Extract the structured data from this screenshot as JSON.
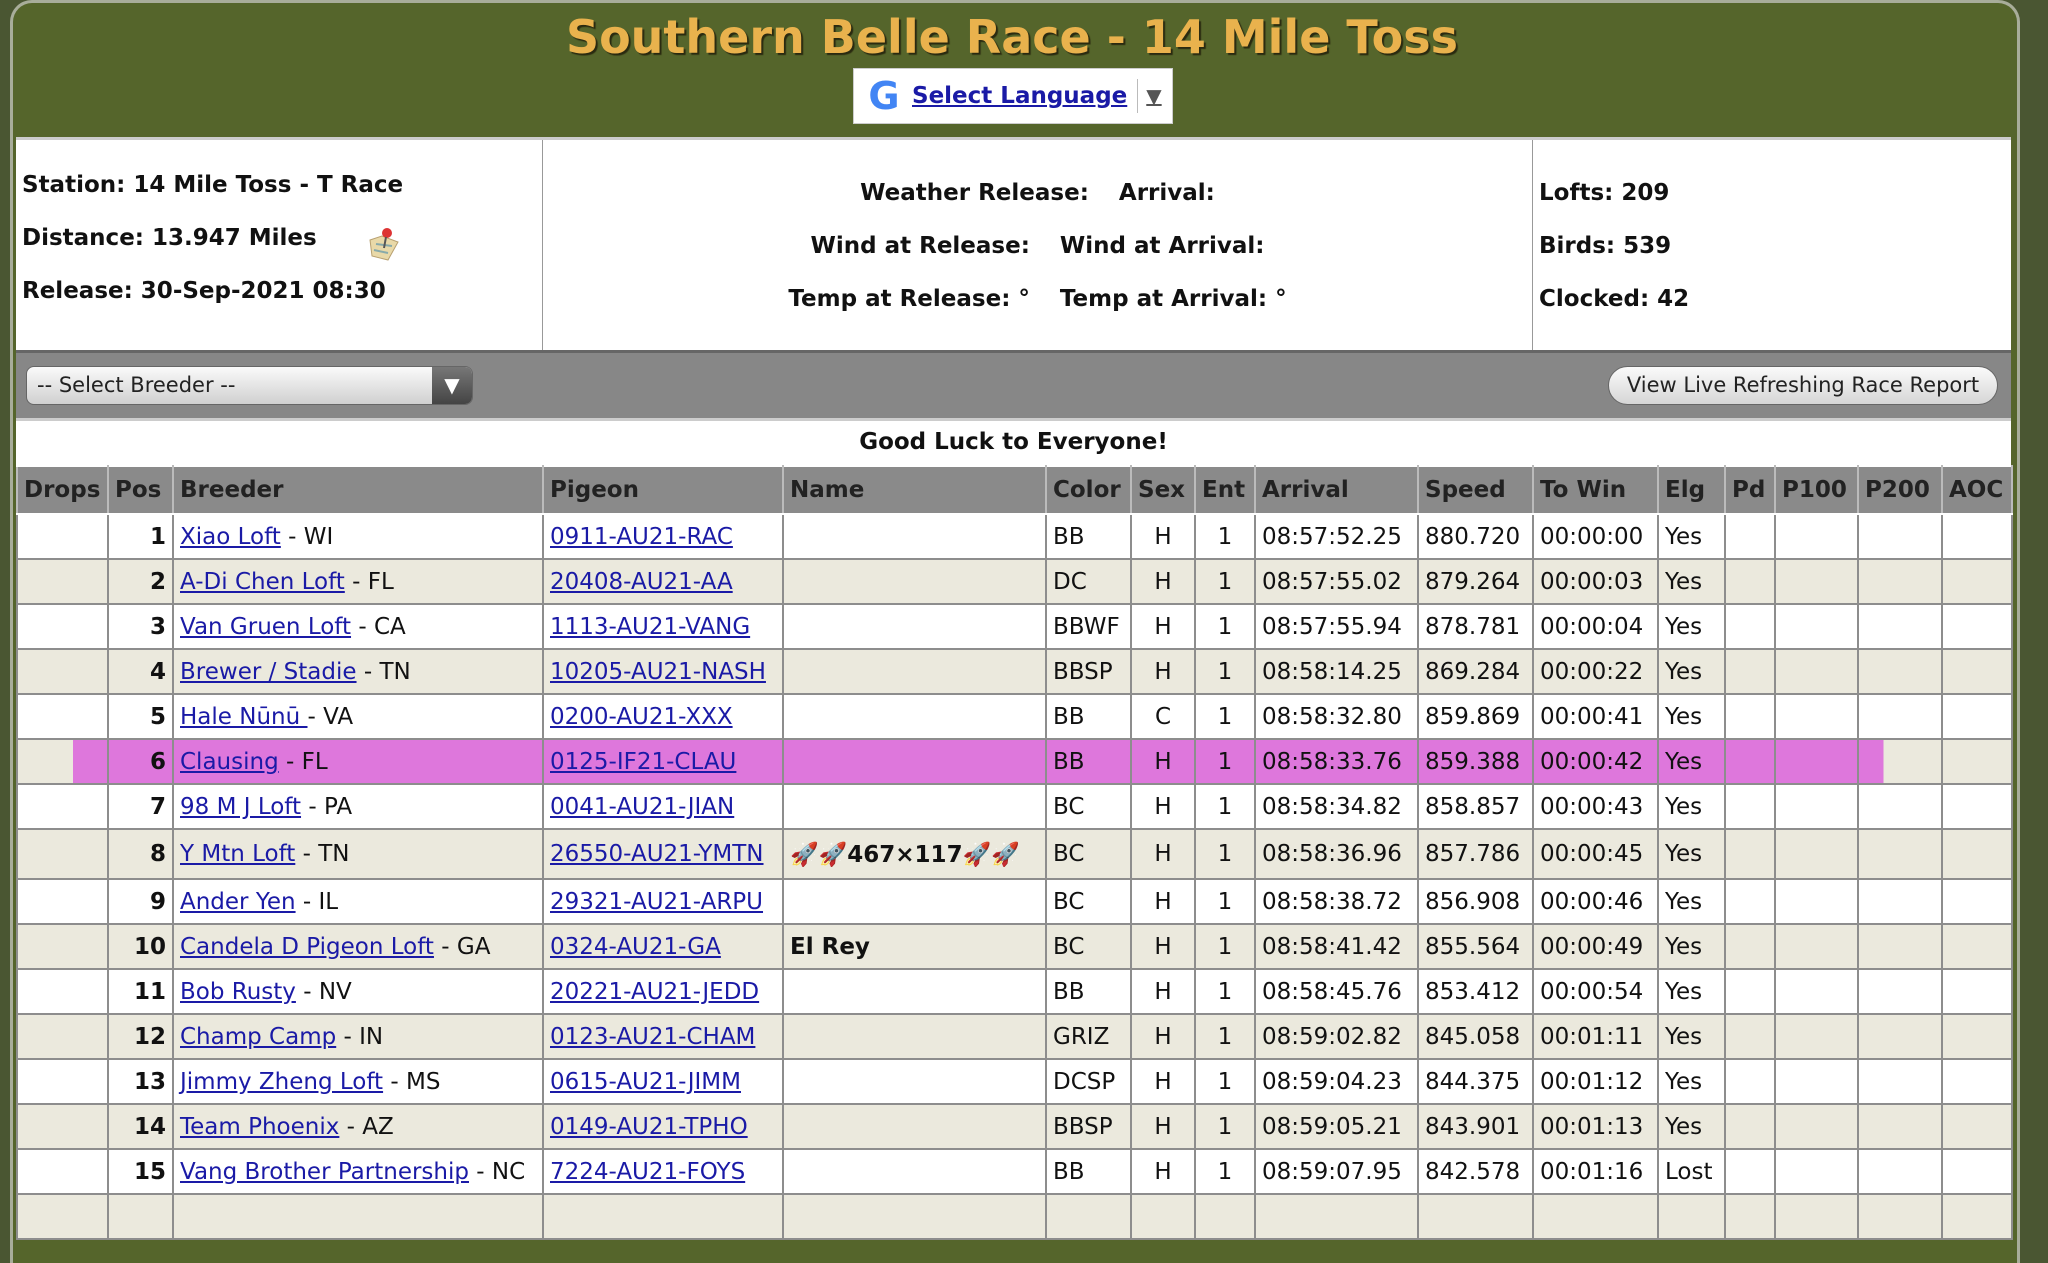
{
  "header": {
    "title": "Southern Belle Race - 14 Mile Toss",
    "language_label": "Select Language",
    "google_icon": "G",
    "dropdown_arrow": "▼"
  },
  "info": {
    "station": "Station: 14 Mile Toss - T Race",
    "distance": "Distance: 13.947 Miles",
    "release": "Release: 30-Sep-2021 08:30",
    "weather_release": "Weather Release:",
    "arrival": "Arrival:",
    "wind_release": "Wind at Release:",
    "wind_arrival": "Wind at Arrival:",
    "temp_release": "Temp at Release: °",
    "temp_arrival": "Temp at Arrival: °",
    "lofts": "Lofts: 209",
    "birds": "Birds: 539",
    "clocked": "Clocked: 42"
  },
  "toolbar": {
    "breeder_select": "-- Select Breeder --",
    "live_button": "View Live Refreshing Race Report"
  },
  "message": "Good Luck to Everyone!",
  "colors": {
    "header_green": "#55652b",
    "title_gold": "#e9b24d",
    "highlight": "#de77dc",
    "alt_row": "#ebe9dd"
  },
  "table": {
    "columns": [
      "Drops",
      "Pos",
      "Breeder",
      "Pigeon",
      "Name",
      "Color",
      "Sex",
      "Ent",
      "Arrival",
      "Speed",
      "To Win",
      "Elg",
      "Pd",
      "P100",
      "P200",
      "AOC"
    ],
    "rows": [
      {
        "pos": "1",
        "breeder": "Xiao Loft",
        "state": " - WI",
        "pigeon": "0911-AU21-RAC",
        "name": "",
        "color": "BB",
        "sex": "H",
        "ent": "1",
        "arrival": "08:57:52.25",
        "speed": "880.720",
        "towin": "00:00:00",
        "elg": "Yes"
      },
      {
        "pos": "2",
        "breeder": "A-Di Chen Loft",
        "state": " - FL",
        "pigeon": "20408-AU21-AA",
        "name": "",
        "color": "DC",
        "sex": "H",
        "ent": "1",
        "arrival": "08:57:55.02",
        "speed": "879.264",
        "towin": "00:00:03",
        "elg": "Yes"
      },
      {
        "pos": "3",
        "breeder": "Van Gruen Loft",
        "state": " - CA",
        "pigeon": "1113-AU21-VANG",
        "name": "",
        "color": "BBWF",
        "sex": "H",
        "ent": "1",
        "arrival": "08:57:55.94",
        "speed": "878.781",
        "towin": "00:00:04",
        "elg": "Yes"
      },
      {
        "pos": "4",
        "breeder": "Brewer / Stadie",
        "state": " - TN",
        "pigeon": "10205-AU21-NASH",
        "name": "",
        "color": "BBSP",
        "sex": "H",
        "ent": "1",
        "arrival": "08:58:14.25",
        "speed": "869.284",
        "towin": "00:00:22",
        "elg": "Yes"
      },
      {
        "pos": "5",
        "breeder": "Hale Nūnū ",
        "state": " - VA",
        "pigeon": "0200-AU21-XXX",
        "name": "",
        "color": "BB",
        "sex": "C",
        "ent": "1",
        "arrival": "08:58:32.80",
        "speed": "859.869",
        "towin": "00:00:41",
        "elg": "Yes"
      },
      {
        "pos": "6",
        "breeder": "Clausing",
        "state": " - FL",
        "pigeon": "0125-IF21-CLAU",
        "name": "",
        "color": "BB",
        "sex": "H",
        "ent": "1",
        "arrival": "08:58:33.76",
        "speed": "859.388",
        "towin": "00:00:42",
        "elg": "Yes",
        "highlighted": true
      },
      {
        "pos": "7",
        "breeder": "98 M J Loft",
        "state": " - PA",
        "pigeon": "0041-AU21-JIAN",
        "name": "",
        "color": "BC",
        "sex": "H",
        "ent": "1",
        "arrival": "08:58:34.82",
        "speed": "858.857",
        "towin": "00:00:43",
        "elg": "Yes"
      },
      {
        "pos": "8",
        "breeder": "Y Mtn Loft",
        "state": " - TN",
        "pigeon": "26550-AU21-YMTN",
        "name": "🚀🚀467×117🚀🚀",
        "color": "BC",
        "sex": "H",
        "ent": "1",
        "arrival": "08:58:36.96",
        "speed": "857.786",
        "towin": "00:00:45",
        "elg": "Yes"
      },
      {
        "pos": "9",
        "breeder": "Ander Yen",
        "state": " - IL",
        "pigeon": "29321-AU21-ARPU",
        "name": "",
        "color": "BC",
        "sex": "H",
        "ent": "1",
        "arrival": "08:58:38.72",
        "speed": "856.908",
        "towin": "00:00:46",
        "elg": "Yes"
      },
      {
        "pos": "10",
        "breeder": "Candela D Pigeon Loft",
        "state": " - GA",
        "pigeon": "0324-AU21-GA",
        "name": "El Rey",
        "color": "BC",
        "sex": "H",
        "ent": "1",
        "arrival": "08:58:41.42",
        "speed": "855.564",
        "towin": "00:00:49",
        "elg": "Yes"
      },
      {
        "pos": "11",
        "breeder": "Bob Rusty",
        "state": " - NV",
        "pigeon": "20221-AU21-JEDD",
        "name": "",
        "color": "BB",
        "sex": "H",
        "ent": "1",
        "arrival": "08:58:45.76",
        "speed": "853.412",
        "towin": "00:00:54",
        "elg": "Yes"
      },
      {
        "pos": "12",
        "breeder": "Champ Camp",
        "state": " - IN",
        "pigeon": "0123-AU21-CHAM",
        "name": "",
        "color": "GRIZ",
        "sex": "H",
        "ent": "1",
        "arrival": "08:59:02.82",
        "speed": "845.058",
        "towin": "00:01:11",
        "elg": "Yes"
      },
      {
        "pos": "13",
        "breeder": "Jimmy Zheng Loft",
        "state": " - MS",
        "pigeon": "0615-AU21-JIMM",
        "name": "",
        "color": "DCSP",
        "sex": "H",
        "ent": "1",
        "arrival": "08:59:04.23",
        "speed": "844.375",
        "towin": "00:01:12",
        "elg": "Yes"
      },
      {
        "pos": "14",
        "breeder": "Team Phoenix",
        "state": " - AZ",
        "pigeon": "0149-AU21-TPHO",
        "name": "",
        "color": "BBSP",
        "sex": "H",
        "ent": "1",
        "arrival": "08:59:05.21",
        "speed": "843.901",
        "towin": "00:01:13",
        "elg": "Yes"
      },
      {
        "pos": "15",
        "breeder": "Vang Brother Partnership",
        "state": " - NC",
        "pigeon": "7224-AU21-FOYS",
        "name": "",
        "color": "BB",
        "sex": "H",
        "ent": "1",
        "arrival": "08:59:07.95",
        "speed": "842.578",
        "towin": "00:01:16",
        "elg": "Lost"
      }
    ]
  }
}
